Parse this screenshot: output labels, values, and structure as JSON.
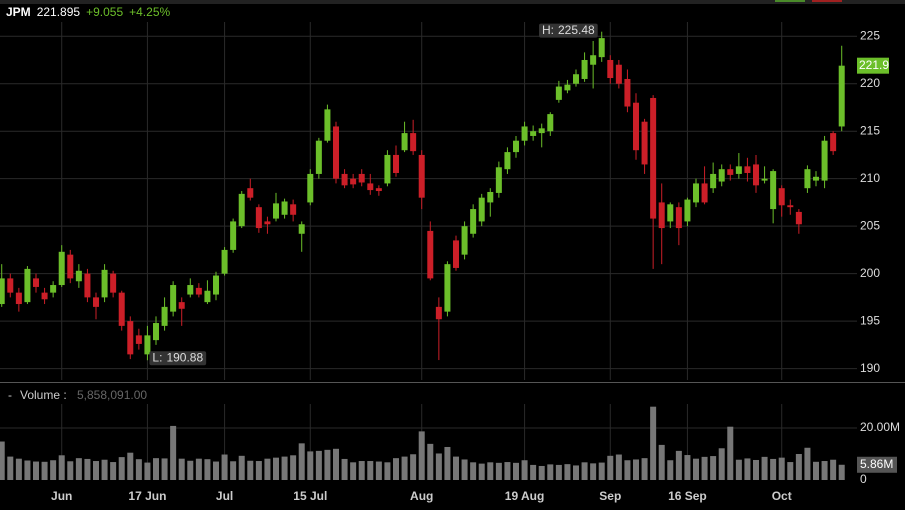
{
  "chart_data": {
    "type": "candlestick",
    "symbol": "JPM",
    "last": "221.895",
    "change": "+9.055",
    "change_percent": "+4.25%",
    "volume_title": "Volume :",
    "volume_current": "5,858,091.00",
    "up_color": "#6cbf2a",
    "down_color": "#cc1f28",
    "volume_color": "#777777",
    "grid": true,
    "open": [
      196.8,
      199.5,
      198,
      197,
      199.5,
      198,
      198,
      198.8,
      202,
      199.2,
      200,
      197.5,
      197.5,
      200,
      198,
      195,
      193.5,
      191.5,
      193,
      194.5,
      196,
      197,
      197.8,
      198.5,
      197,
      197.8,
      200,
      202.5,
      205,
      209,
      207,
      205.5,
      205.8,
      206.2,
      207.3,
      204.2,
      207.5,
      210.5,
      214,
      215.5,
      210.5,
      210,
      210.5,
      209.5,
      209,
      209.5,
      212.5,
      213,
      214.8,
      212.5,
      204.5,
      196.5,
      196,
      203.5,
      202,
      204.2,
      205.5,
      207.5,
      208.5,
      211,
      212.8,
      214,
      214.5,
      214.8,
      215,
      218.3,
      219.3,
      220,
      220.5,
      222,
      222.8,
      222.5,
      222,
      220.5,
      218,
      216,
      218.5,
      207.5,
      205.5,
      207,
      205.5,
      207.5,
      209.5,
      209,
      209.7,
      211,
      210.5,
      211.3,
      211.5,
      209.8,
      206.8,
      209,
      207.2,
      206.5,
      209,
      209.8,
      209.8,
      214.8,
      215.5
    ],
    "high": [
      201,
      200,
      198.5,
      200.8,
      200,
      198.5,
      199.2,
      203,
      202.5,
      201,
      200.5,
      198,
      201,
      200.3,
      198.2,
      195.5,
      194.2,
      194.5,
      195.5,
      197.5,
      199.2,
      197.5,
      199.5,
      199,
      199.3,
      200.2,
      202.8,
      205.8,
      208.7,
      210,
      207.3,
      206,
      208.5,
      207.9,
      207.8,
      205.5,
      211,
      214.3,
      217.8,
      216,
      211,
      210.5,
      211,
      210.5,
      209.3,
      213,
      213.5,
      216,
      216.2,
      213,
      205.5,
      197.5,
      201.3,
      204,
      205.5,
      207.3,
      208.4,
      209,
      211.8,
      213.3,
      214.5,
      216,
      215.6,
      215.8,
      217,
      220.3,
      220.4,
      221.5,
      223.3,
      224.5,
      225.48,
      223,
      222.5,
      221.5,
      219,
      216.3,
      218.8,
      209.5,
      207.5,
      207.5,
      208,
      210,
      211.3,
      211.7,
      211.5,
      211.5,
      212.7,
      212.2,
      212.5,
      211.3,
      211,
      209.3,
      207.8,
      206.8,
      211.4,
      210.8,
      214.5,
      215,
      224
    ],
    "low": [
      196.5,
      197.5,
      196,
      196.8,
      198,
      196.8,
      197.5,
      198.6,
      199,
      198.5,
      197,
      195.2,
      197,
      197.5,
      194,
      191,
      192,
      190.88,
      192.5,
      194,
      195.5,
      194.5,
      197.5,
      197.5,
      196.8,
      197.2,
      199.8,
      202.2,
      204.8,
      207.7,
      204.3,
      204.2,
      205.5,
      205.8,
      205.5,
      202.3,
      207.2,
      210,
      213.8,
      209.5,
      209,
      209,
      209.2,
      208.3,
      208.2,
      209.2,
      210.2,
      212.8,
      212.5,
      206.8,
      199.3,
      190.9,
      195.5,
      200.3,
      201.5,
      203.8,
      205,
      206,
      208,
      210.5,
      212.2,
      213.5,
      214,
      213.3,
      214.5,
      218,
      219,
      219.7,
      220.2,
      219.5,
      222.3,
      220,
      219.5,
      217,
      212,
      210.5,
      200.5,
      201,
      204.8,
      203,
      205,
      207,
      207.3,
      208.5,
      209.2,
      209.8,
      210,
      209.7,
      208.5,
      209.5,
      205.3,
      206,
      206.2,
      204.2,
      208.5,
      209.2,
      209,
      212.5,
      215
    ],
    "close": [
      199.5,
      198,
      196.8,
      200.5,
      198.6,
      197.3,
      198.8,
      202.3,
      199.5,
      200.3,
      197.5,
      196.5,
      200.4,
      198,
      194.5,
      191.5,
      192.6,
      193.5,
      194.8,
      196.5,
      198.8,
      196.3,
      198.8,
      197.8,
      198.2,
      199.8,
      202.5,
      205.5,
      208.4,
      208,
      204.8,
      205.2,
      207.4,
      207.6,
      206.2,
      205.2,
      210.5,
      214,
      217.3,
      210,
      209.3,
      209.4,
      209.6,
      208.8,
      208.7,
      212.5,
      210.6,
      214.8,
      212.9,
      208,
      199.5,
      195.2,
      201,
      200.6,
      205,
      206.8,
      208,
      208.6,
      211.2,
      212.8,
      214,
      215.5,
      215,
      215.3,
      216.8,
      219.7,
      219.9,
      221,
      222.5,
      223,
      224.8,
      220.6,
      220,
      217.6,
      213,
      211.5,
      205.8,
      204.8,
      207.3,
      204.8,
      207.8,
      209.5,
      207.5,
      210.5,
      211,
      210.4,
      211.3,
      210.6,
      209.3,
      210,
      210.8,
      207.2,
      207,
      205.2,
      211,
      210.2,
      214,
      212.9,
      221.9
    ],
    "volume": [
      14800000,
      9000000,
      8200000,
      7500000,
      7100000,
      7000000,
      7600000,
      9500000,
      7200000,
      8400000,
      8100000,
      7300000,
      7800000,
      6900000,
      8800000,
      10500000,
      8000000,
      6700000,
      8400000,
      8300000,
      20800000,
      8200000,
      7400000,
      8200000,
      8000000,
      7100000,
      9800000,
      7200000,
      9300000,
      7400000,
      7300000,
      8200000,
      8600000,
      9000000,
      9500000,
      14100000,
      11000000,
      11200000,
      11600000,
      12000000,
      8100000,
      6800000,
      7300000,
      7300000,
      7100000,
      6800000,
      8400000,
      9000000,
      9900000,
      18700000,
      13900000,
      10200000,
      12700000,
      9000000,
      7900000,
      6800000,
      6300000,
      6800000,
      6600000,
      6900000,
      6600000,
      7600000,
      5800000,
      5400000,
      6000000,
      5800000,
      6100000,
      5600000,
      6800000,
      6400000,
      6700000,
      9300000,
      9800000,
      7600000,
      7900000,
      8400000,
      28200000,
      13500000,
      7600000,
      11200000,
      9600000,
      8200000,
      8900000,
      9200000,
      12200000,
      20500000,
      7800000,
      8300000,
      7700000,
      8900000,
      8100000,
      8600000,
      6900000,
      10000000,
      12400000,
      7000000,
      7300000,
      7800000,
      5858091
    ],
    "ylim": [
      188.8,
      226.5
    ],
    "yticks": [
      190,
      195,
      200,
      205,
      210,
      215,
      220,
      225
    ],
    "y2lim": [
      0,
      30000000
    ],
    "y2ticks": [
      0,
      {
        "value": 20000000,
        "label": "20.00M"
      }
    ],
    "xlim": [
      -0.2,
      99.2
    ],
    "xticks": [
      {
        "value": 7,
        "label": "Jun"
      },
      {
        "value": 17,
        "label": "17 Jun"
      },
      {
        "value": 26,
        "label": "Jul"
      },
      {
        "value": 36,
        "label": "15 Jul"
      },
      {
        "value": 49,
        "label": "Aug"
      },
      {
        "value": 61,
        "label": "19 Aug"
      },
      {
        "value": 71,
        "label": "Sep"
      },
      {
        "value": 80,
        "label": "16 Sep"
      },
      {
        "value": 91,
        "label": "Oct"
      }
    ],
    "high_label": {
      "prefix": "H:",
      "value": 225.48
    },
    "low_label": {
      "prefix": "L:",
      "value": 190.88
    },
    "last_tag": 221.9,
    "volume_tag": {
      "value": 5858091,
      "label": "5.86M"
    }
  }
}
